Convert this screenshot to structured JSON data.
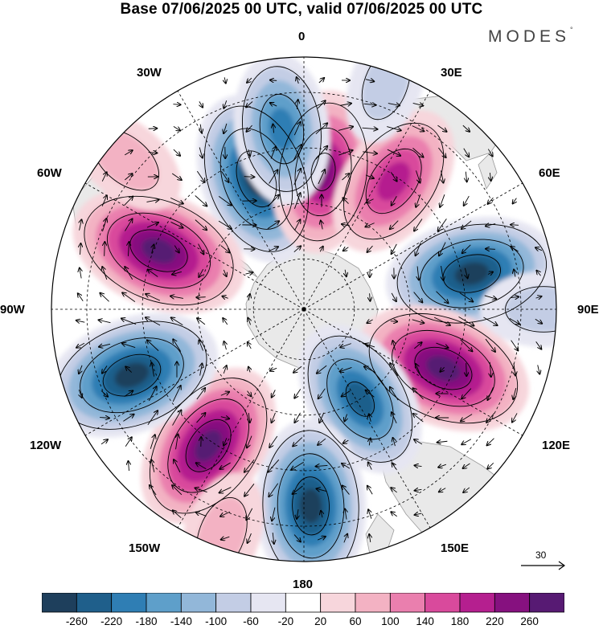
{
  "title": "Base 07/06/2025 00 UTC, valid 07/06/2025 00 UTC",
  "logo": {
    "text": "MODES",
    "mark": "°"
  },
  "longitude_labels": [
    {
      "name": "lon-0",
      "text": "0"
    },
    {
      "name": "lon-30e",
      "text": "30E"
    },
    {
      "name": "lon-60e",
      "text": "60E"
    },
    {
      "name": "lon-90e",
      "text": "90E"
    },
    {
      "name": "lon-120e",
      "text": "120E"
    },
    {
      "name": "lon-150e",
      "text": "150E"
    },
    {
      "name": "lon-180",
      "text": "180"
    },
    {
      "name": "lon-150w",
      "text": "150W"
    },
    {
      "name": "lon-120w",
      "text": "120W"
    },
    {
      "name": "lon-90w",
      "text": "90W"
    },
    {
      "name": "lon-60w",
      "text": "60W"
    },
    {
      "name": "lon-30w",
      "text": "30W"
    }
  ],
  "reference_vector": {
    "value": "30"
  },
  "colorbar": {
    "ticks": [
      "-260",
      "-220",
      "-180",
      "-140",
      "-100",
      "-60",
      "-20",
      "20",
      "60",
      "100",
      "140",
      "180",
      "220",
      "260"
    ],
    "colors": [
      "#1e3f5c",
      "#1f5f8b",
      "#2f7eb4",
      "#5e9fca",
      "#92b7d9",
      "#c3cde5",
      "#e6e6f2",
      "#ffffff",
      "#f7d6dc",
      "#f3b2c3",
      "#ea7fae",
      "#d94a9c",
      "#b51f8f",
      "#86117f",
      "#571a73"
    ]
  },
  "colors": {
    "continent": "#e9e9e9",
    "coast": "#9a9a9a",
    "grid": "#000000"
  },
  "anomaly_centers": [
    {
      "lon": -20,
      "colat_fraction": 0.55,
      "value": -240
    },
    {
      "lon": 8,
      "colat_fraction": 0.55,
      "value": 200
    },
    {
      "lon": -7,
      "colat_fraction": 0.72,
      "value": -160
    },
    {
      "lon": 35,
      "colat_fraction": 0.62,
      "value": 180
    },
    {
      "lon": 78,
      "colat_fraction": 0.68,
      "value": -240
    },
    {
      "lon": 113,
      "colat_fraction": 0.6,
      "value": 260
    },
    {
      "lon": 148,
      "colat_fraction": 0.42,
      "value": -200
    },
    {
      "lon": 178,
      "colat_fraction": 0.78,
      "value": -240
    },
    {
      "lon": -145,
      "colat_fraction": 0.66,
      "value": 240
    },
    {
      "lon": -111,
      "colat_fraction": 0.73,
      "value": -260
    },
    {
      "lon": -68,
      "colat_fraction": 0.62,
      "value": 260
    },
    {
      "lon": -50,
      "colat_fraction": 0.92,
      "value": 60
    },
    {
      "lon": 90,
      "colat_fraction": 0.95,
      "value": -60
    },
    {
      "lon": -160,
      "colat_fraction": 0.95,
      "value": 60
    },
    {
      "lon": 20,
      "colat_fraction": 0.95,
      "value": -40
    }
  ]
}
